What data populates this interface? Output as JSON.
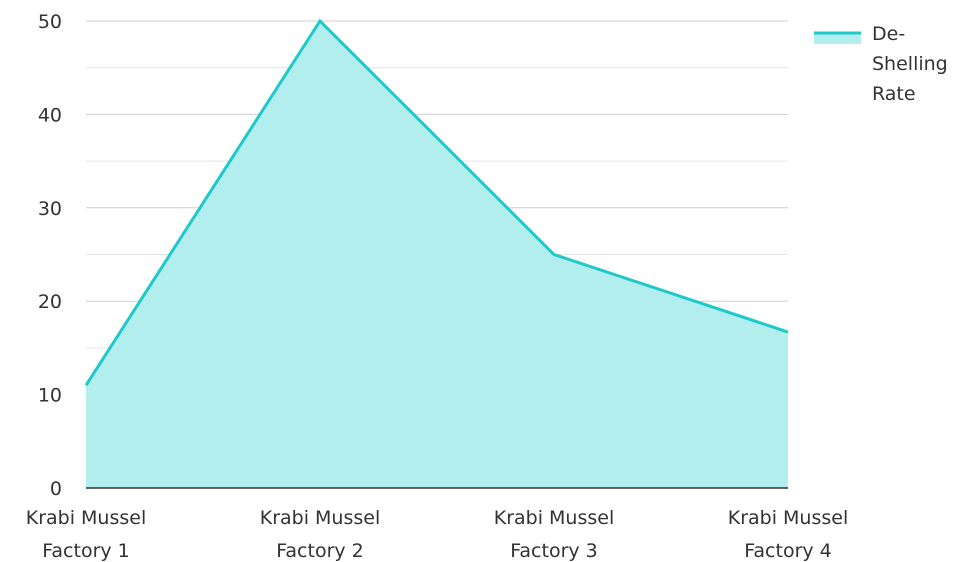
{
  "chart_data": {
    "type": "area",
    "title": "",
    "xlabel": "",
    "ylabel": "",
    "categories": [
      [
        "Krabi Mussel",
        "Factory 1"
      ],
      [
        "Krabi Mussel",
        "Factory 2"
      ],
      [
        "Krabi Mussel",
        "Factory 3"
      ],
      [
        "Krabi Mussel",
        "Factory 4"
      ]
    ],
    "series": [
      {
        "name": "De-Shelling Rate",
        "name_lines": [
          "De-",
          "Shelling",
          "Rate"
        ],
        "values": [
          11,
          50,
          25,
          16.7
        ],
        "line_color": "#1fc9c9",
        "fill_color": "#b2eeed"
      }
    ],
    "ylim": [
      0,
      50
    ],
    "yticks": [
      "0",
      "10",
      "20",
      "30",
      "40",
      "50"
    ],
    "ytick_values": [
      0,
      10,
      20,
      30,
      40,
      50
    ],
    "minor_gridlines": true,
    "grid": true,
    "legend_position": "top-right"
  }
}
